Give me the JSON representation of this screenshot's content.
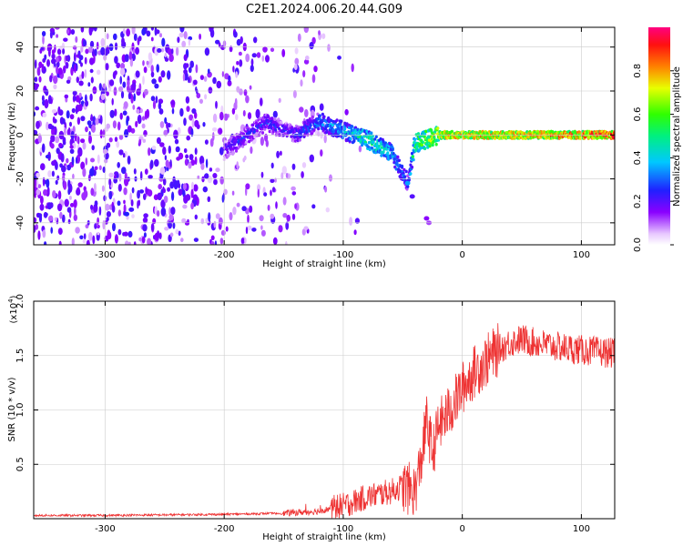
{
  "title": "C2E1.2024.006.20.44.G09",
  "chart_data": [
    {
      "type": "heatmap",
      "title": "C2E1.2024.006.20.44.G09",
      "xlabel": "Height of straight line (km)",
      "ylabel": "Frequency (Hz)",
      "xlim": [
        -360,
        128
      ],
      "ylim": [
        -50,
        49
      ],
      "xticks": [
        -300,
        -200,
        -100,
        0,
        100
      ],
      "xtick_labels": [
        "-300",
        "-200",
        "-100",
        "0",
        "100"
      ],
      "yticks": [
        -40,
        -20,
        0,
        20,
        40
      ],
      "ytick_labels": [
        "-40",
        "-20",
        "0",
        "20",
        "40"
      ],
      "colorbar": {
        "label": "Normalized spectral amplitude",
        "range": [
          0,
          1
        ],
        "ticks": [
          0.0,
          0.2,
          0.4,
          0.6,
          0.8
        ],
        "tick_labels": [
          "0.0",
          "0.2",
          "0.4",
          "0.6",
          "0.8"
        ],
        "colormap": "rainbow (white-violet-blue-cyan-green-yellow-red-magenta)"
      },
      "ridge": {
        "description": "spectral peak ridge approximately at frequency 0 Hz, broad scatter below height -100 km",
        "points": [
          {
            "x": -280,
            "y": -36,
            "amp": 0.25
          },
          {
            "x": -180,
            "y": 0,
            "amp": 0.3
          },
          {
            "x": -165,
            "y": 6,
            "amp": 0.3
          },
          {
            "x": -140,
            "y": 0,
            "amp": 0.3
          },
          {
            "x": -120,
            "y": 6,
            "amp": 0.4
          },
          {
            "x": -100,
            "y": 2,
            "amp": 0.45
          },
          {
            "x": -80,
            "y": -2,
            "amp": 0.6
          },
          {
            "x": -60,
            "y": -8,
            "amp": 0.5
          },
          {
            "x": -45,
            "y": -22,
            "amp": 0.35
          },
          {
            "x": -40,
            "y": -4,
            "amp": 0.65
          },
          {
            "x": -20,
            "y": 0,
            "amp": 0.85
          },
          {
            "x": 0,
            "y": 0,
            "amp": 0.9
          },
          {
            "x": 50,
            "y": 0,
            "amp": 0.92
          },
          {
            "x": 100,
            "y": 0,
            "amp": 0.95
          },
          {
            "x": 128,
            "y": 0,
            "amp": 1.0
          }
        ]
      },
      "grid": true
    },
    {
      "type": "line",
      "xlabel": "Height of straight line (km)",
      "ylabel": "SNR (10 * v/v)",
      "y_multiplier_label": "(x10",
      "y_multiplier_exp": "4",
      "y_multiplier_close": ")",
      "xlim": [
        -360,
        128
      ],
      "ylim": [
        0,
        2.0
      ],
      "xticks": [
        -300,
        -200,
        -100,
        0,
        100
      ],
      "xtick_labels": [
        "-300",
        "-200",
        "-100",
        "0",
        "100"
      ],
      "yticks": [
        0.5,
        1.0,
        1.5,
        2.0
      ],
      "ytick_labels": [
        "0.5",
        "1.0",
        "1.5",
        "2.0"
      ],
      "color": "#ee3333",
      "grid": true,
      "series": [
        {
          "x": [
            -360,
            -300,
            -200,
            -150,
            -120,
            -100,
            -80,
            -60,
            -50,
            -40,
            -35,
            -30,
            -25,
            -20,
            -10,
            0,
            10,
            20,
            30,
            40,
            50,
            60,
            80,
            100,
            128
          ],
          "y": [
            0.03,
            0.03,
            0.04,
            0.05,
            0.07,
            0.12,
            0.2,
            0.25,
            0.3,
            0.25,
            0.5,
            0.9,
            0.6,
            0.85,
            1.0,
            1.2,
            1.35,
            1.45,
            1.55,
            1.62,
            1.65,
            1.62,
            1.58,
            1.55,
            1.52
          ]
        }
      ]
    }
  ]
}
